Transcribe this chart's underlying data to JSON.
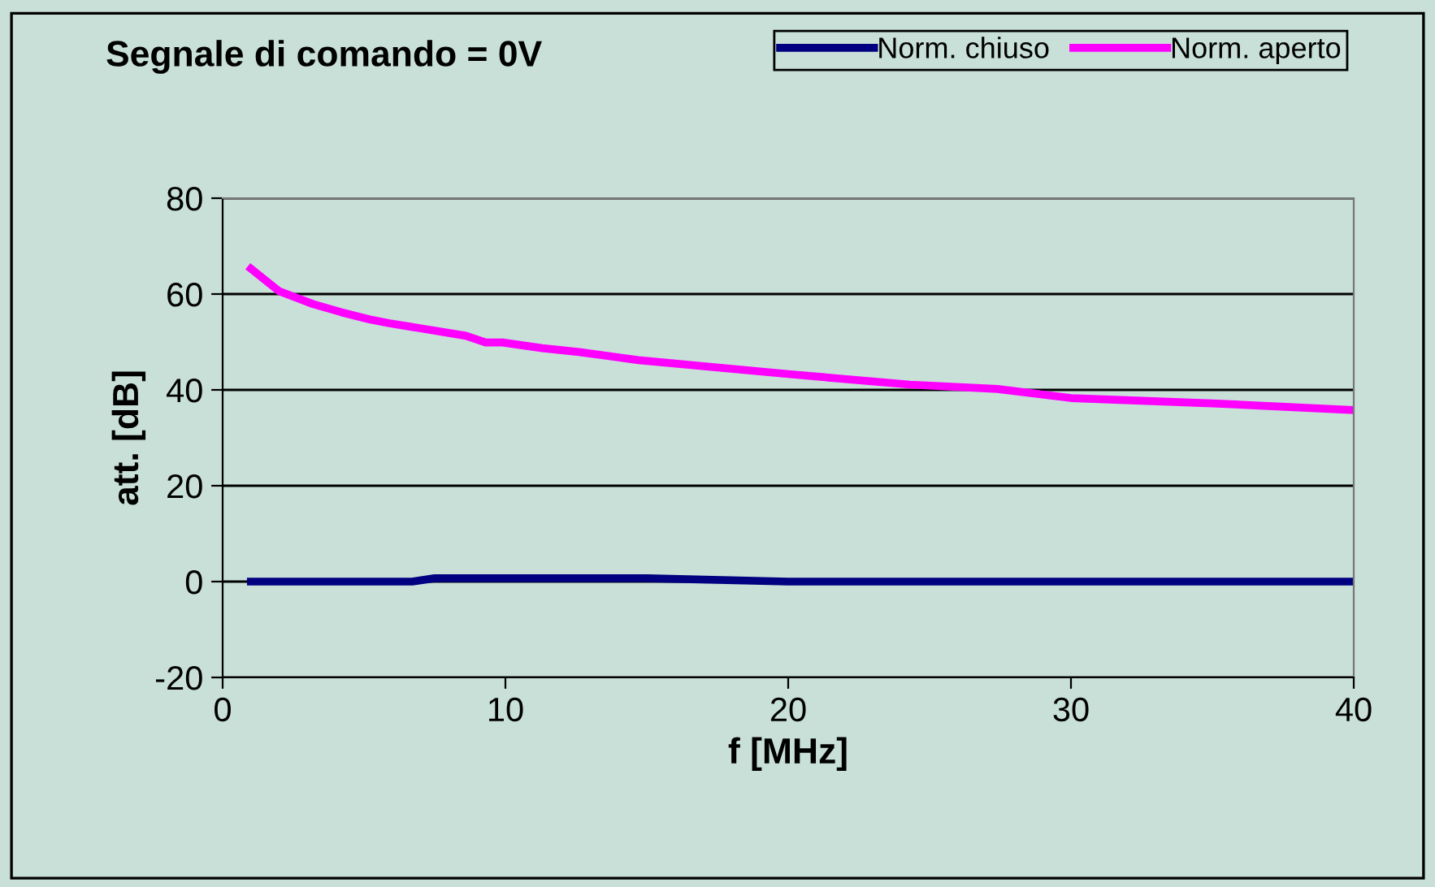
{
  "chart_data": {
    "type": "line",
    "title": "Segnale di comando = 0V",
    "xlabel": "f [MHz]",
    "ylabel": "att. [dB]",
    "xlim": [
      0,
      40
    ],
    "xticks": [
      0,
      10,
      20,
      30,
      40
    ],
    "ylim": [
      -20,
      80
    ],
    "yticks": [
      -20,
      0,
      20,
      40,
      60,
      80
    ],
    "grid": "y",
    "legend": "top right",
    "marker": "none",
    "line_style": "solid",
    "series": [
      {
        "name": "Norm. chiuso",
        "color": "#000080",
        "x": [
          1,
          2,
          3,
          4,
          5,
          6,
          6.7,
          7.5,
          10,
          15,
          20,
          25,
          30,
          35,
          40
        ],
        "values": [
          0,
          0,
          0,
          0,
          0,
          0,
          0,
          0.7,
          0.7,
          0.7,
          0,
          0,
          0,
          0,
          0
        ]
      },
      {
        "name": "Norm. aperto",
        "color": "#ff00ff",
        "x": [
          1,
          1.7,
          2,
          3.2,
          4.2,
          5.2,
          5.9,
          8.6,
          9.3,
          9.9,
          11.3,
          12.6,
          14.7,
          20,
          24.3,
          27.4,
          30,
          35,
          40
        ],
        "values": [
          65.3,
          62,
          60.6,
          57.9,
          56.2,
          54.7,
          53.9,
          51.3,
          49.9,
          49.9,
          48.7,
          47.9,
          46.2,
          43.3,
          41.1,
          40.2,
          38.3,
          37.2,
          35.8
        ]
      }
    ]
  }
}
